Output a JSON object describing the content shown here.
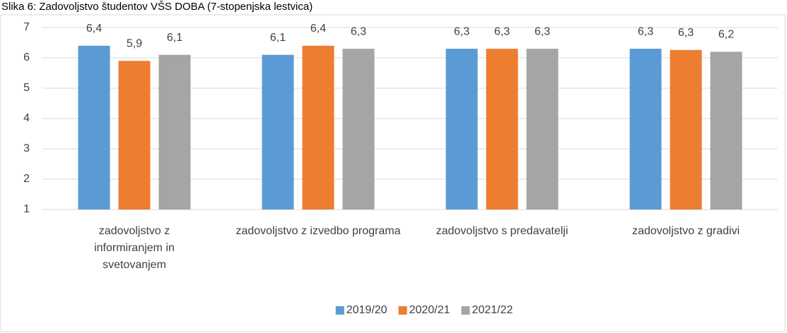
{
  "chart_data": {
    "type": "bar",
    "title": "Slika 6: Zadovoljstvo študentov VŠS DOBA (7-stopenjska lestvica)",
    "categories": [
      "zadovoljstvo z informiranjem in svetovanjem",
      "zadovoljstvo z izvedbo programa",
      "zadovoljstvo s predavatelji",
      "zadovoljstvo z gradivi"
    ],
    "series": [
      {
        "name": "2019/20",
        "color": "#5b9bd5",
        "values": [
          6.4,
          6.1,
          6.3,
          6.3
        ],
        "value_labels": [
          "6,4",
          "6,1",
          "6,3",
          "6,3"
        ]
      },
      {
        "name": "2020/21",
        "color": "#ed7d31",
        "values": [
          5.9,
          6.4,
          6.3,
          6.26
        ],
        "value_labels": [
          "5,9",
          "6,4",
          "6,3",
          "6,3"
        ]
      },
      {
        "name": "2021/22",
        "color": "#a5a5a5",
        "values": [
          6.1,
          6.3,
          6.3,
          6.2
        ],
        "value_labels": [
          "6,1",
          "6,3",
          "6,3",
          "6,2"
        ]
      }
    ],
    "ylim": [
      1,
      7
    ],
    "yticks": [
      1,
      2,
      3,
      4,
      5,
      6,
      7
    ],
    "grid": true,
    "legend": "bottom"
  }
}
